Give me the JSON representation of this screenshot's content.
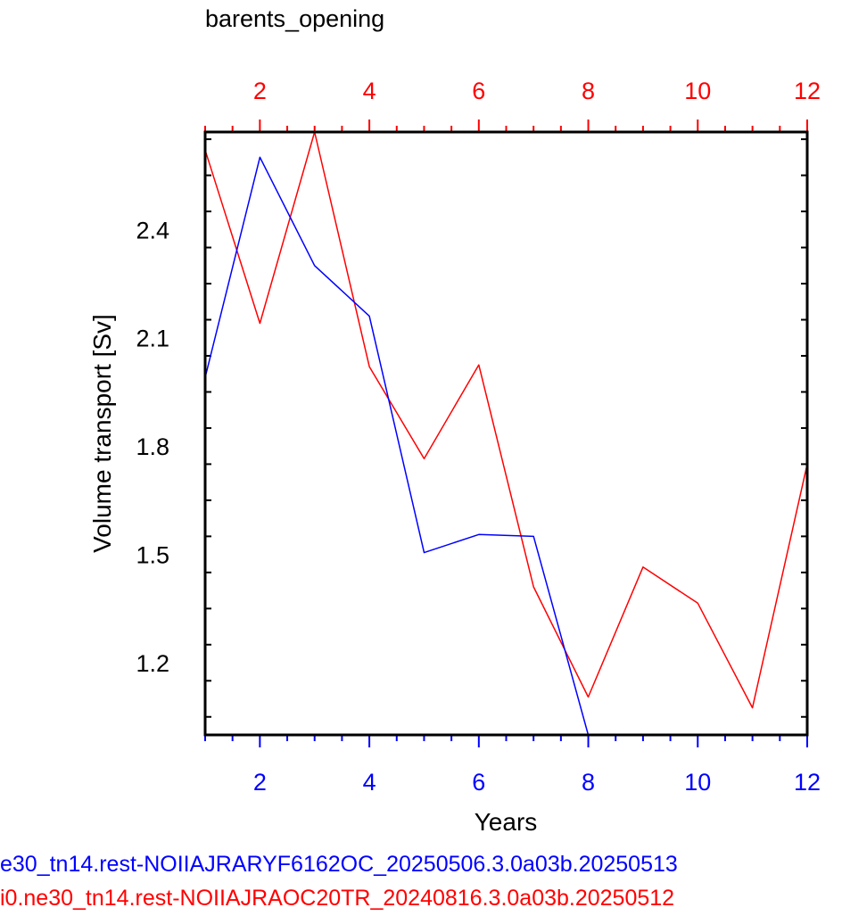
{
  "chart_data": {
    "type": "line",
    "title": "barents_opening",
    "xlabel": "Years",
    "ylabel": "Volume transport [Sv]",
    "xlim": [
      1,
      12
    ],
    "ylim": [
      1.0,
      2.67
    ],
    "x_ticks": [
      2,
      4,
      6,
      8,
      10,
      12
    ],
    "y_ticks": [
      1.2,
      1.5,
      1.8,
      2.1,
      2.4
    ],
    "grid": false,
    "series": [
      {
        "name": "e30_tn14.rest-NOIIAJRARYF6162OC_20250506.3.0a03b.20250513",
        "color": "#0000ff",
        "x": [
          1,
          2,
          3,
          4,
          5,
          6,
          7,
          8
        ],
        "y": [
          1.99,
          2.6,
          2.3,
          2.16,
          1.505,
          1.555,
          1.55,
          1.0
        ]
      },
      {
        "name": "i0.ne30_tn14.rest-NOIIAJRAOC20TR_20240816.3.0a03b.20250512",
        "color": "#ff0000",
        "x": [
          1,
          2,
          3,
          4,
          5,
          6,
          7,
          8,
          9,
          10,
          11,
          12
        ],
        "y": [
          2.62,
          2.14,
          2.67,
          2.02,
          1.765,
          2.025,
          1.41,
          1.105,
          1.465,
          1.365,
          1.075,
          1.75
        ]
      }
    ]
  },
  "axis_colors": {
    "top_ticks": "#ff0000",
    "bottom_ticks": "#0000ff",
    "frame": "#000000"
  }
}
